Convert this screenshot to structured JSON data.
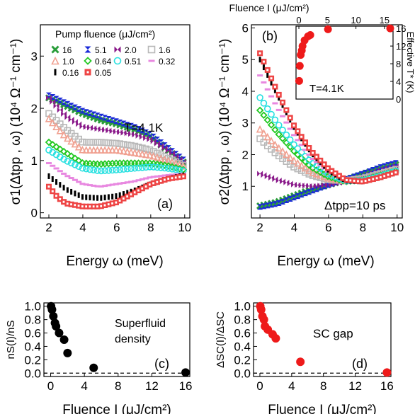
{
  "chart_data": [
    {
      "panel": "(a)",
      "type": "scatter",
      "xlabel": "Energy ω (meV)",
      "ylabel": "σ1(Δtpp , ω) (10⁴ Ω⁻¹ cm⁻¹)",
      "xlim": [
        1.5,
        10.3
      ],
      "ylim": [
        -0.1,
        3.6
      ],
      "xticks": [
        2,
        4,
        6,
        8,
        10
      ],
      "yticks": [
        0,
        1,
        2,
        3
      ],
      "annotation": "T=4.1K",
      "legend_title": "Pump fluence (μJ/cm²)",
      "legend_position": "top",
      "series": [
        {
          "name": "16",
          "color": "#2a9d3a",
          "marker": "x",
          "values": [
            [
              2,
              2.2
            ],
            [
              3,
              2.05
            ],
            [
              4,
              1.9
            ],
            [
              5,
              1.78
            ],
            [
              6,
              1.7
            ],
            [
              7,
              1.6
            ],
            [
              8,
              1.45
            ],
            [
              9,
              1.2
            ],
            [
              10,
              0.95
            ]
          ]
        },
        {
          "name": "5.1",
          "color": "#1a2ad8",
          "marker": "hourglass",
          "values": [
            [
              2,
              2.25
            ],
            [
              3,
              2.1
            ],
            [
              4,
              1.95
            ],
            [
              5,
              1.85
            ],
            [
              6,
              1.75
            ],
            [
              7,
              1.65
            ],
            [
              8,
              1.5
            ],
            [
              9,
              1.25
            ],
            [
              10,
              1.0
            ]
          ]
        },
        {
          "name": "2.0",
          "color": "#8a1a8a",
          "marker": "bowtie",
          "values": [
            [
              2,
              2.2
            ],
            [
              3,
              1.85
            ],
            [
              4,
              1.65
            ],
            [
              5,
              1.6
            ],
            [
              6,
              1.55
            ],
            [
              7,
              1.5
            ],
            [
              8,
              1.4
            ],
            [
              9,
              1.2
            ],
            [
              10,
              0.95
            ]
          ]
        },
        {
          "name": "1.6",
          "color": "#b8b8b8",
          "marker": "square",
          "values": [
            [
              2,
              1.9
            ],
            [
              3,
              1.6
            ],
            [
              4,
              1.35
            ],
            [
              5,
              1.35
            ],
            [
              6,
              1.33
            ],
            [
              7,
              1.28
            ],
            [
              8,
              1.2
            ],
            [
              9,
              1.05
            ],
            [
              10,
              0.9
            ]
          ]
        },
        {
          "name": "1.0",
          "color": "#f0a090",
          "marker": "triangle",
          "values": [
            [
              2,
              1.8
            ],
            [
              3,
              1.45
            ],
            [
              4,
              1.2
            ],
            [
              5,
              1.2
            ],
            [
              6,
              1.2
            ],
            [
              7,
              1.15
            ],
            [
              8,
              1.1
            ],
            [
              9,
              1.0
            ],
            [
              10,
              0.88
            ]
          ]
        },
        {
          "name": "0.64",
          "color": "#22c822",
          "marker": "diamond",
          "values": [
            [
              2,
              1.35
            ],
            [
              3,
              1.15
            ],
            [
              4,
              0.95
            ],
            [
              5,
              0.93
            ],
            [
              6,
              0.95
            ],
            [
              7,
              0.95
            ],
            [
              8,
              0.95
            ],
            [
              9,
              0.9
            ],
            [
              10,
              0.82
            ]
          ]
        },
        {
          "name": "0.51",
          "color": "#28e0e0",
          "marker": "circle",
          "values": [
            [
              2,
              1.2
            ],
            [
              3,
              1.0
            ],
            [
              4,
              0.85
            ],
            [
              5,
              0.8
            ],
            [
              6,
              0.82
            ],
            [
              7,
              0.85
            ],
            [
              8,
              0.88
            ],
            [
              9,
              0.85
            ],
            [
              10,
              0.8
            ]
          ]
        },
        {
          "name": "0.32",
          "color": "#e888e0",
          "marker": "dash",
          "values": [
            [
              2,
              0.95
            ],
            [
              3,
              0.72
            ],
            [
              4,
              0.55
            ],
            [
              5,
              0.5
            ],
            [
              6,
              0.55
            ],
            [
              7,
              0.6
            ],
            [
              8,
              0.68
            ],
            [
              9,
              0.72
            ],
            [
              10,
              0.75
            ]
          ]
        },
        {
          "name": "0.16",
          "color": "#000000",
          "marker": "bar",
          "values": [
            [
              2,
              0.7
            ],
            [
              3,
              0.45
            ],
            [
              4,
              0.3
            ],
            [
              5,
              0.28
            ],
            [
              6,
              0.32
            ],
            [
              7,
              0.42
            ],
            [
              8,
              0.55
            ],
            [
              9,
              0.65
            ],
            [
              10,
              0.72
            ]
          ]
        },
        {
          "name": "0.05",
          "color": "#ee4444",
          "marker": "squaredot",
          "values": [
            [
              2,
              0.5
            ],
            [
              2.5,
              0.3
            ],
            [
              3,
              0.18
            ],
            [
              4,
              0.12
            ],
            [
              5,
              0.12
            ],
            [
              6,
              0.2
            ],
            [
              7,
              0.38
            ],
            [
              8,
              0.55
            ],
            [
              9,
              0.65
            ],
            [
              10,
              0.7
            ]
          ]
        }
      ]
    },
    {
      "panel": "(b)",
      "type": "scatter",
      "xlabel": "Energy ω (meV)",
      "ylabel": "σ2(Δtpp , ω) (10⁴ Ω⁻¹ cm⁻¹)",
      "xlim": [
        1.5,
        10.3
      ],
      "ylim": [
        0,
        6.1
      ],
      "xticks": [
        2,
        4,
        6,
        8,
        10
      ],
      "yticks": [
        1,
        2,
        3,
        4,
        5,
        6
      ],
      "annotation": "Δtpp=10 ps",
      "series": [
        {
          "name": "16",
          "color": "#2a9d3a",
          "values": [
            [
              2,
              0.38
            ],
            [
              3,
              0.5
            ],
            [
              4,
              0.7
            ],
            [
              5,
              0.9
            ],
            [
              6,
              1.05
            ],
            [
              7,
              1.2
            ],
            [
              8,
              1.38
            ],
            [
              9,
              1.55
            ],
            [
              10,
              1.7
            ]
          ]
        },
        {
          "name": "5.1",
          "color": "#1a2ad8",
          "values": [
            [
              2,
              0.35
            ],
            [
              3,
              0.45
            ],
            [
              4,
              0.65
            ],
            [
              5,
              0.85
            ],
            [
              6,
              1.05
            ],
            [
              7,
              1.22
            ],
            [
              8,
              1.4
            ],
            [
              9,
              1.6
            ],
            [
              10,
              1.75
            ]
          ]
        },
        {
          "name": "2.0",
          "color": "#8a1a8a",
          "values": [
            [
              2,
              1.4
            ],
            [
              3,
              1.2
            ],
            [
              4,
              1.05
            ],
            [
              5,
              1.0
            ],
            [
              6,
              1.05
            ],
            [
              7,
              1.15
            ],
            [
              8,
              1.3
            ],
            [
              9,
              1.5
            ],
            [
              10,
              1.65
            ]
          ]
        },
        {
          "name": "1.6",
          "color": "#b8b8b8",
          "values": [
            [
              2,
              2.5
            ],
            [
              3,
              2.0
            ],
            [
              4,
              1.6
            ],
            [
              5,
              1.35
            ],
            [
              6,
              1.2
            ],
            [
              7,
              1.18
            ],
            [
              8,
              1.25
            ],
            [
              9,
              1.4
            ],
            [
              10,
              1.55
            ]
          ]
        },
        {
          "name": "1.0",
          "color": "#f0a090",
          "values": [
            [
              2,
              2.8
            ],
            [
              3,
              2.25
            ],
            [
              4,
              1.8
            ],
            [
              5,
              1.45
            ],
            [
              6,
              1.25
            ],
            [
              7,
              1.17
            ],
            [
              8,
              1.22
            ],
            [
              9,
              1.38
            ],
            [
              10,
              1.52
            ]
          ]
        },
        {
          "name": "0.64",
          "color": "#22c822",
          "values": [
            [
              2,
              3.4
            ],
            [
              3,
              2.7
            ],
            [
              4,
              2.1
            ],
            [
              5,
              1.6
            ],
            [
              6,
              1.3
            ],
            [
              7,
              1.15
            ],
            [
              8,
              1.2
            ],
            [
              9,
              1.35
            ],
            [
              10,
              1.5
            ]
          ]
        },
        {
          "name": "0.51",
          "color": "#28e0e0",
          "values": [
            [
              2,
              3.8
            ],
            [
              3,
              3.0
            ],
            [
              4,
              2.3
            ],
            [
              5,
              1.75
            ],
            [
              6,
              1.38
            ],
            [
              7,
              1.17
            ],
            [
              8,
              1.18
            ],
            [
              9,
              1.32
            ],
            [
              10,
              1.5
            ]
          ]
        },
        {
          "name": "0.32",
          "color": "#e888e0",
          "values": [
            [
              2,
              4.5
            ],
            [
              3,
              3.5
            ],
            [
              4,
              2.6
            ],
            [
              5,
              1.9
            ],
            [
              6,
              1.45
            ],
            [
              7,
              1.17
            ],
            [
              8,
              1.15
            ],
            [
              9,
              1.3
            ],
            [
              10,
              1.48
            ]
          ]
        },
        {
          "name": "0.16",
          "color": "#000000",
          "values": [
            [
              2,
              5.0
            ],
            [
              3,
              3.9
            ],
            [
              4,
              2.85
            ],
            [
              5,
              2.05
            ],
            [
              6,
              1.5
            ],
            [
              7,
              1.18
            ],
            [
              8,
              1.15
            ],
            [
              9,
              1.28
            ],
            [
              10,
              1.45
            ]
          ]
        },
        {
          "name": "0.05",
          "color": "#ee4444",
          "values": [
            [
              2,
              5.2
            ],
            [
              2.5,
              4.6
            ],
            [
              3,
              4.0
            ],
            [
              4,
              2.9
            ],
            [
              5,
              2.1
            ],
            [
              6,
              1.55
            ],
            [
              7,
              1.2
            ],
            [
              8,
              1.15
            ],
            [
              9,
              1.28
            ],
            [
              10,
              1.45
            ]
          ]
        }
      ]
    },
    {
      "panel": "(b-inset)",
      "type": "scatter",
      "xlabel": "Fluence I (μJ/cm²)",
      "ylabel": "Effective T* (K)",
      "xlim": [
        -0.5,
        16.5
      ],
      "ylim": [
        0,
        16.5
      ],
      "xticks": [
        0,
        5,
        10,
        15
      ],
      "yticks": [
        0,
        4,
        8,
        12,
        16
      ],
      "annotation": "T=4.1K",
      "series": [
        {
          "color": "#ee1a1a",
          "values": [
            [
              0.05,
              4.1
            ],
            [
              0.16,
              7.5
            ],
            [
              0.32,
              10.0
            ],
            [
              0.51,
              11.0
            ],
            [
              0.64,
              12.0
            ],
            [
              1.0,
              13.3
            ],
            [
              1.6,
              14.2
            ],
            [
              2.0,
              14.5
            ],
            [
              5.1,
              15.8
            ],
            [
              16,
              16.0
            ]
          ]
        }
      ]
    },
    {
      "panel": "(c)",
      "type": "scatter",
      "xlabel": "Fluence I (μJ/cm²)",
      "ylabel": "nS(I)/nS",
      "xlim": [
        -0.8,
        16.5
      ],
      "ylim": [
        -0.05,
        1.05
      ],
      "xticks": [
        0,
        4,
        8,
        12,
        16
      ],
      "yticks": [
        0.0,
        0.2,
        0.4,
        0.6,
        0.8,
        1.0
      ],
      "annotation": "Superfluid density",
      "series": [
        {
          "color": "#000000",
          "values": [
            [
              0.05,
              1.0
            ],
            [
              0.16,
              0.95
            ],
            [
              0.32,
              0.85
            ],
            [
              0.51,
              0.75
            ],
            [
              0.64,
              0.7
            ],
            [
              1.0,
              0.6
            ],
            [
              1.6,
              0.5
            ],
            [
              2.0,
              0.3
            ],
            [
              5.1,
              0.08
            ],
            [
              16,
              0.01
            ]
          ]
        }
      ]
    },
    {
      "panel": "(d)",
      "type": "scatter",
      "xlabel": "Fluence I (μJ/cm²)",
      "ylabel": "ΔSC(I)/ΔSC",
      "xlim": [
        -0.8,
        16.5
      ],
      "ylim": [
        -0.05,
        1.05
      ],
      "xticks": [
        0,
        4,
        8,
        12,
        16
      ],
      "yticks": [
        0.0,
        0.2,
        0.4,
        0.6,
        0.8,
        1.0
      ],
      "annotation": "SC gap",
      "series": [
        {
          "color": "#ee1a1a",
          "values": [
            [
              0.05,
              1.0
            ],
            [
              0.16,
              0.95
            ],
            [
              0.32,
              0.85
            ],
            [
              0.51,
              0.8
            ],
            [
              0.64,
              0.7
            ],
            [
              1.0,
              0.65
            ],
            [
              1.6,
              0.58
            ],
            [
              2.0,
              0.52
            ],
            [
              5.1,
              0.17
            ],
            [
              16,
              0.01
            ]
          ]
        }
      ]
    }
  ]
}
